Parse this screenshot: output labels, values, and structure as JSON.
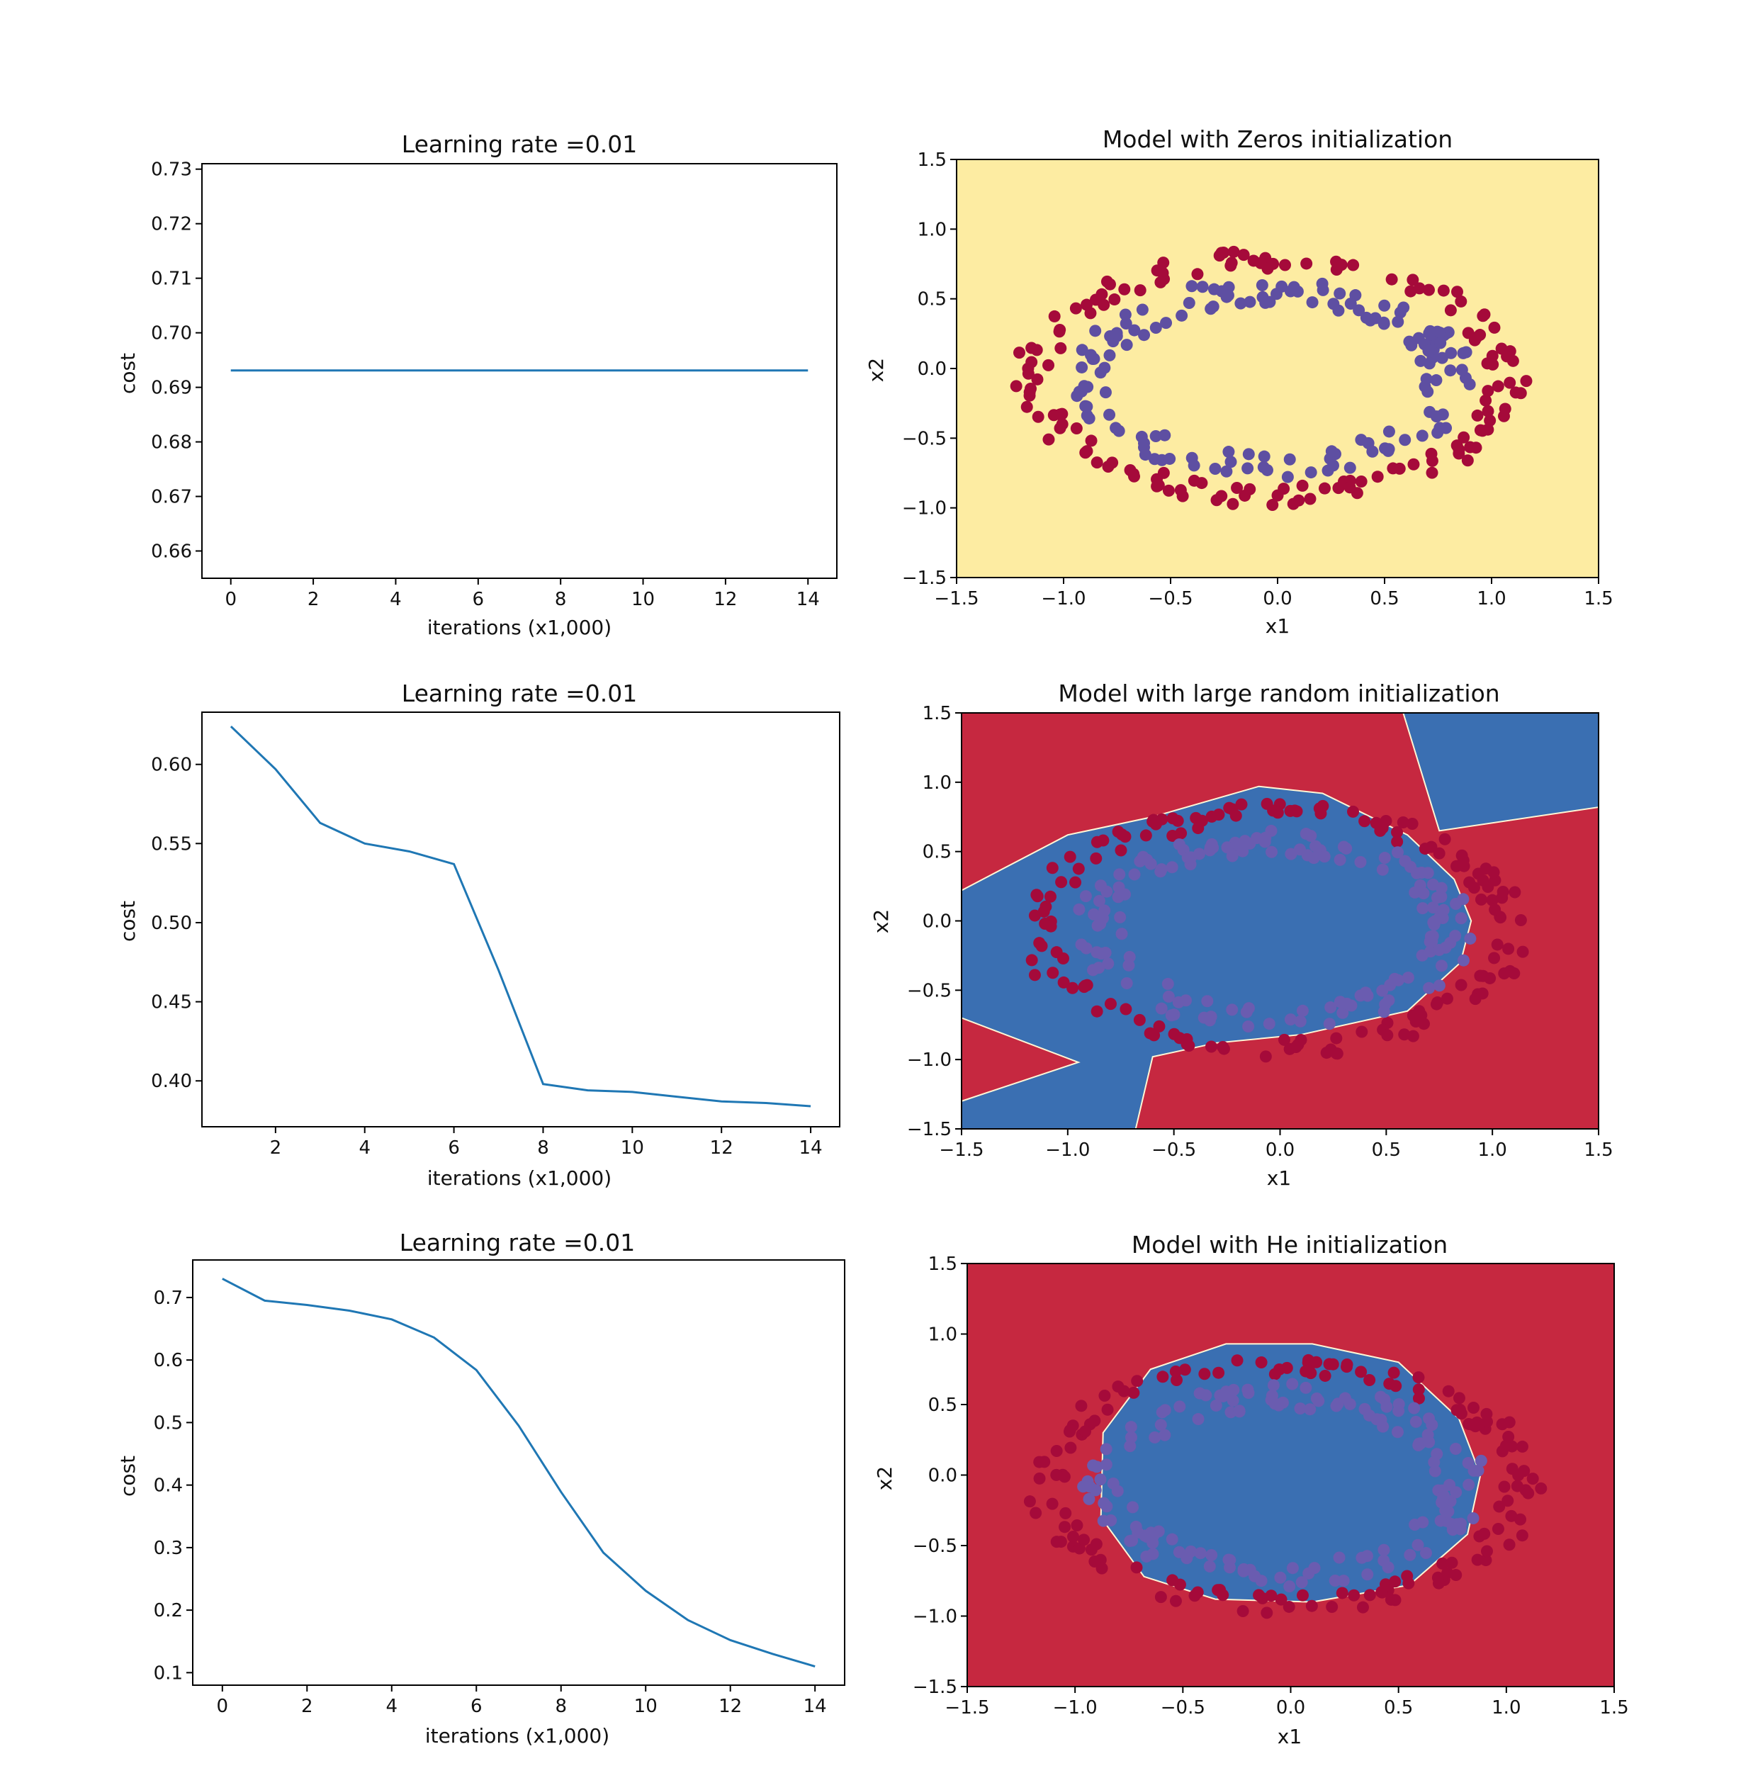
{
  "chart_data": [
    {
      "type": "line",
      "title": "Learning rate =0.01",
      "xlabel": "iterations (x1,000)",
      "ylabel": "cost",
      "xlim": [
        -0.7,
        14.7
      ],
      "ylim": [
        0.655,
        0.731
      ],
      "xticks": [
        0,
        2,
        4,
        6,
        8,
        10,
        12,
        14
      ],
      "xtick_labels": [
        "0",
        "2",
        "4",
        "6",
        "8",
        "10",
        "12",
        "14"
      ],
      "yticks": [
        0.66,
        0.67,
        0.68,
        0.69,
        0.7,
        0.71,
        0.72,
        0.73
      ],
      "ytick_labels": [
        "0.66",
        "0.67",
        "0.68",
        "0.69",
        "0.70",
        "0.71",
        "0.72",
        "0.73"
      ],
      "grid": false,
      "color": "#1f77b4",
      "series": [
        {
          "x": [
            0,
            1,
            2,
            3,
            4,
            5,
            6,
            7,
            8,
            9,
            10,
            11,
            12,
            13,
            14
          ],
          "y": [
            0.6931,
            0.6931,
            0.6931,
            0.6931,
            0.6931,
            0.6931,
            0.6931,
            0.6931,
            0.6931,
            0.6931,
            0.6931,
            0.6931,
            0.6931,
            0.6931,
            0.6931
          ]
        }
      ]
    },
    {
      "type": "scatter",
      "title": "Model with Zeros initialization",
      "xlabel": "x1",
      "ylabel": "x2",
      "xlim": [
        -1.5,
        1.5
      ],
      "ylim": [
        -1.5,
        1.5
      ],
      "xticks": [
        -1.5,
        -1.0,
        -0.5,
        0.0,
        0.5,
        1.0,
        1.5
      ],
      "xtick_labels": [
        "−1.5",
        "−1.0",
        "−0.5",
        "0.0",
        "0.5",
        "1.0",
        "1.5"
      ],
      "yticks": [
        -1.5,
        -1.0,
        -0.5,
        0.0,
        0.5,
        1.0,
        1.5
      ],
      "ytick_labels": [
        "−1.5",
        "−1.0",
        "−0.5",
        "0.0",
        "0.5",
        "1.0",
        "1.5"
      ],
      "background": "#fdeca2",
      "regions": [],
      "class_colors": {
        "outer": "#a50a3a",
        "inner": "#5e4fa2"
      },
      "series": [
        {
          "name": "",
          "class": "outer",
          "seed": 11
        },
        {
          "name": "",
          "class": "inner",
          "seed": 23
        }
      ]
    },
    {
      "type": "line",
      "title": "Learning rate =0.01",
      "xlabel": "iterations (x1,000)",
      "ylabel": "cost",
      "xlim": [
        0.35,
        14.65
      ],
      "ylim": [
        0.371,
        0.633
      ],
      "xticks": [
        2,
        4,
        6,
        8,
        10,
        12,
        14
      ],
      "xtick_labels": [
        "2",
        "4",
        "6",
        "8",
        "10",
        "12",
        "14"
      ],
      "yticks": [
        0.4,
        0.45,
        0.5,
        0.55,
        0.6
      ],
      "ytick_labels": [
        "0.40",
        "0.45",
        "0.50",
        "0.55",
        "0.60"
      ],
      "grid": false,
      "color": "#1f77b4",
      "series": [
        {
          "x": [
            1,
            2,
            3,
            4,
            5,
            6,
            7,
            8,
            9,
            10,
            11,
            12,
            13,
            14
          ],
          "y": [
            0.624,
            0.597,
            0.563,
            0.55,
            0.545,
            0.537,
            0.47,
            0.398,
            0.394,
            0.393,
            0.39,
            0.387,
            0.386,
            0.384
          ]
        }
      ]
    },
    {
      "type": "scatter",
      "title": "Model with large random initialization",
      "xlabel": "x1",
      "ylabel": "x2",
      "xlim": [
        -1.5,
        1.5
      ],
      "ylim": [
        -1.5,
        1.5
      ],
      "xticks": [
        -1.5,
        -1.0,
        -0.5,
        0.0,
        0.5,
        1.0,
        1.5
      ],
      "xtick_labels": [
        "−1.5",
        "−1.0",
        "−0.5",
        "0.0",
        "0.5",
        "1.0",
        "1.5"
      ],
      "yticks": [
        -1.5,
        -1.0,
        -0.5,
        0.0,
        0.5,
        1.0,
        1.5
      ],
      "ytick_labels": [
        "−1.5",
        "−1.0",
        "−0.5",
        "0.0",
        "0.5",
        "1.0",
        "1.5"
      ],
      "background": "#c62840",
      "regions": [
        {
          "color": "#3a6fb2",
          "points": [
            [
              -1.5,
              0.22
            ],
            [
              -1.0,
              0.62
            ],
            [
              -0.6,
              0.75
            ],
            [
              -0.1,
              0.97
            ],
            [
              0.2,
              0.92
            ],
            [
              0.6,
              0.62
            ],
            [
              0.82,
              0.3
            ],
            [
              0.9,
              0.0
            ],
            [
              0.85,
              -0.3
            ],
            [
              0.6,
              -0.65
            ],
            [
              0.1,
              -0.82
            ],
            [
              -0.3,
              -0.88
            ],
            [
              -0.6,
              -0.98
            ],
            [
              -0.68,
              -1.5
            ],
            [
              -1.5,
              -1.5
            ],
            [
              -1.5,
              -1.3
            ],
            [
              -0.95,
              -1.02
            ],
            [
              -1.5,
              -0.7
            ]
          ]
        },
        {
          "color": "#3a6fb2",
          "points": [
            [
              0.58,
              1.5
            ],
            [
              1.5,
              1.5
            ],
            [
              1.5,
              0.82
            ],
            [
              0.75,
              0.65
            ]
          ]
        }
      ],
      "class_colors": {
        "outer": "#a50a3a",
        "inner": "#6a5cb0"
      },
      "series": [
        {
          "name": "",
          "class": "outer",
          "seed": 37
        },
        {
          "name": "",
          "class": "inner",
          "seed": 41
        }
      ]
    },
    {
      "type": "line",
      "title": "Learning rate =0.01",
      "xlabel": "iterations (x1,000)",
      "ylabel": "cost",
      "xlim": [
        -0.7,
        14.7
      ],
      "ylim": [
        0.08,
        0.76
      ],
      "xticks": [
        0,
        2,
        4,
        6,
        8,
        10,
        12,
        14
      ],
      "xtick_labels": [
        "0",
        "2",
        "4",
        "6",
        "8",
        "10",
        "12",
        "14"
      ],
      "yticks": [
        0.1,
        0.2,
        0.3,
        0.4,
        0.5,
        0.6,
        0.7
      ],
      "ytick_labels": [
        "0.1",
        "0.2",
        "0.3",
        "0.4",
        "0.5",
        "0.6",
        "0.7"
      ],
      "grid": false,
      "color": "#1f77b4",
      "series": [
        {
          "x": [
            0,
            1,
            2,
            3,
            4,
            5,
            6,
            7,
            8,
            9,
            10,
            11,
            12,
            13,
            14
          ],
          "y": [
            0.73,
            0.695,
            0.688,
            0.679,
            0.665,
            0.636,
            0.584,
            0.495,
            0.389,
            0.292,
            0.231,
            0.184,
            0.152,
            0.13,
            0.11
          ]
        }
      ]
    },
    {
      "type": "scatter",
      "title": "Model with He initialization",
      "xlabel": "x1",
      "ylabel": "x2",
      "xlim": [
        -1.5,
        1.5
      ],
      "ylim": [
        -1.5,
        1.5
      ],
      "xticks": [
        -1.5,
        -1.0,
        -0.5,
        0.0,
        0.5,
        1.0,
        1.5
      ],
      "xtick_labels": [
        "−1.5",
        "−1.0",
        "−0.5",
        "0.0",
        "0.5",
        "1.0",
        "1.5"
      ],
      "yticks": [
        -1.5,
        -1.0,
        -0.5,
        0.0,
        0.5,
        1.0,
        1.5
      ],
      "ytick_labels": [
        "−1.5",
        "−1.0",
        "−0.5",
        "0.0",
        "0.5",
        "1.0",
        "1.5"
      ],
      "background": "#c62840",
      "regions": [
        {
          "color": "#3a6fb2",
          "points": [
            [
              -0.87,
              0.3
            ],
            [
              -0.65,
              0.75
            ],
            [
              -0.3,
              0.93
            ],
            [
              0.1,
              0.93
            ],
            [
              0.5,
              0.8
            ],
            [
              0.78,
              0.4
            ],
            [
              0.88,
              0.0
            ],
            [
              0.82,
              -0.42
            ],
            [
              0.55,
              -0.78
            ],
            [
              0.1,
              -0.9
            ],
            [
              -0.35,
              -0.88
            ],
            [
              -0.68,
              -0.72
            ],
            [
              -0.88,
              -0.3
            ]
          ]
        }
      ],
      "class_colors": {
        "outer": "#a50a3a",
        "inner": "#6a5cb0"
      },
      "series": [
        {
          "name": "",
          "class": "outer",
          "seed": 53
        },
        {
          "name": "",
          "class": "inner",
          "seed": 67
        }
      ]
    }
  ]
}
